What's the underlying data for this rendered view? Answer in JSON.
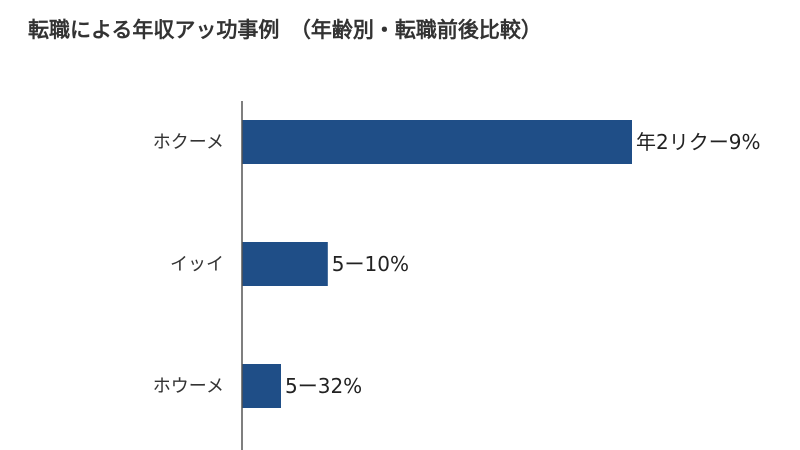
{
  "chart_data": {
    "type": "bar",
    "orientation": "horizontal",
    "title": "転職による年収アッ功事例　（年齢別・転職前後比較）",
    "categories": [
      "ホクーメ",
      "イッイ",
      "ホウーメ"
    ],
    "values": [
      100,
      22,
      10
    ],
    "value_labels": [
      "年2リクー9%",
      "5ー10%",
      "5ー32%"
    ],
    "xlim": [
      0,
      100
    ],
    "colors": {
      "bar": "#1f4e87"
    },
    "grid": false
  }
}
